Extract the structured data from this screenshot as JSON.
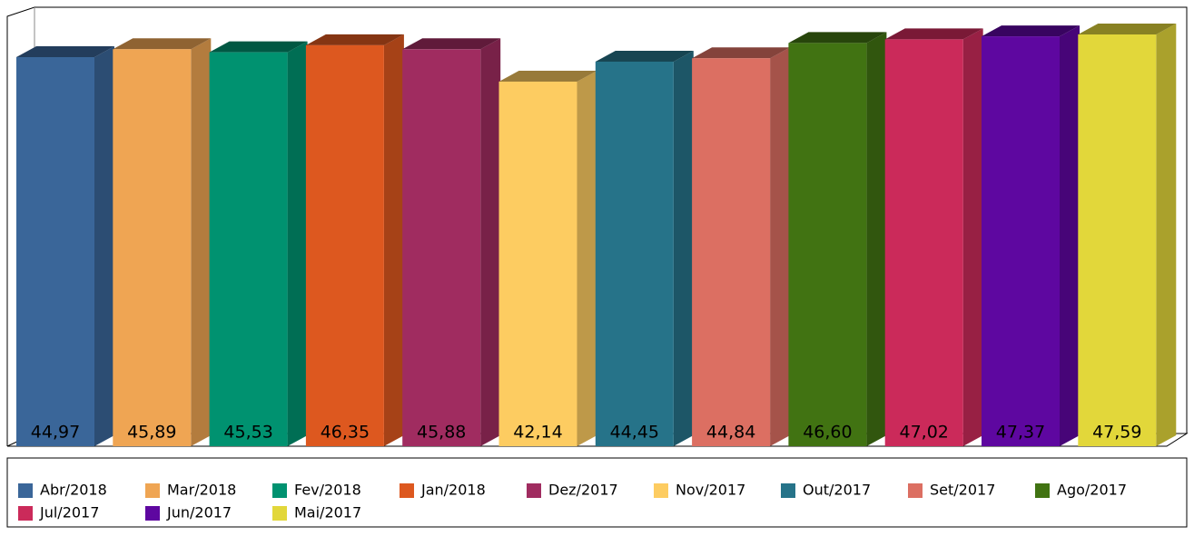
{
  "chart_data": {
    "type": "bar3d",
    "categories": [
      "Abr/2018",
      "Mar/2018",
      "Fev/2018",
      "Jan/2018",
      "Dez/2017",
      "Nov/2017",
      "Out/2017",
      "Set/2017",
      "Ago/2017",
      "Jul/2017",
      "Jun/2017",
      "Mai/2017"
    ],
    "values": [
      44.97,
      45.89,
      45.53,
      46.35,
      45.88,
      42.14,
      44.45,
      44.84,
      46.6,
      47.02,
      47.37,
      47.59
    ],
    "value_labels": [
      "44,97",
      "45,89",
      "45,53",
      "46,35",
      "45,88",
      "42,14",
      "44,45",
      "44,84",
      "46,60",
      "47,02",
      "47,37",
      "47,59"
    ],
    "colors": [
      "#3a6699",
      "#efa553",
      "#009270",
      "#dd581f",
      "#a02c60",
      "#fdcc61",
      "#267389",
      "#dc6f62",
      "#417312",
      "#cb2a5a",
      "#5e07a0",
      "#e2d73a"
    ],
    "ylim": [
      0,
      50
    ]
  }
}
